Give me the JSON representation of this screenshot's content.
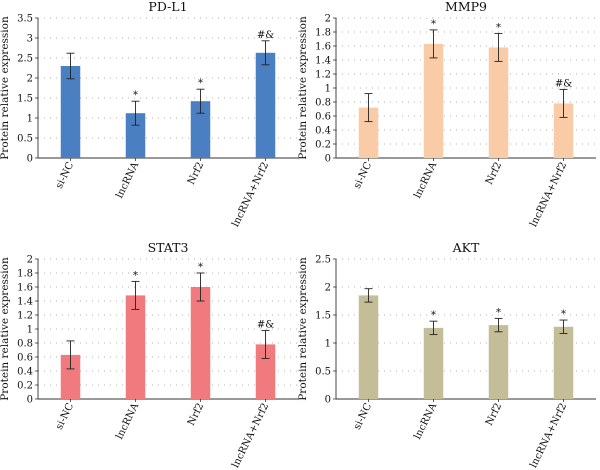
{
  "chart_data": [
    {
      "type": "bar",
      "title": "PD-L1",
      "ylabel": "Protein relative expression",
      "xlabel": "",
      "categories": [
        "si-NC",
        "lncRNA",
        "Nrf2",
        "lncRNA+Nrf2"
      ],
      "values": [
        2.3,
        1.12,
        1.42,
        2.63
      ],
      "errors": [
        0.32,
        0.3,
        0.3,
        0.3
      ],
      "annotations": [
        "",
        "*",
        "*",
        "#&"
      ],
      "ylim": [
        0,
        3.5
      ],
      "yticks": [
        "0",
        "0.5",
        "1",
        "1.5",
        "2",
        "2.5",
        "3",
        "3.5"
      ],
      "grid": true,
      "color": "#4a7fc1"
    },
    {
      "type": "bar",
      "title": "MMP9",
      "ylabel": "Protein relative expression",
      "xlabel": "",
      "categories": [
        "si-NC",
        "lncRNA",
        "Nrf2",
        "lncRNA+Nrf2"
      ],
      "values": [
        0.72,
        1.63,
        1.58,
        0.78
      ],
      "errors": [
        0.2,
        0.2,
        0.2,
        0.2
      ],
      "annotations": [
        "",
        "*",
        "*",
        "#&"
      ],
      "ylim": [
        0,
        2
      ],
      "yticks": [
        "0",
        "0.2",
        "0.4",
        "0.6",
        "0.8",
        "1",
        "1.2",
        "1.4",
        "1.6",
        "1.8",
        "2"
      ],
      "grid": true,
      "color": "#f9cba7"
    },
    {
      "type": "bar",
      "title": "STAT3",
      "ylabel": "Protein relative expression",
      "xlabel": "",
      "categories": [
        "si-NC",
        "lncRNA",
        "Nrf2",
        "lncRNA+Nrf2"
      ],
      "values": [
        0.63,
        1.48,
        1.6,
        0.78
      ],
      "errors": [
        0.2,
        0.2,
        0.2,
        0.2
      ],
      "annotations": [
        "",
        "*",
        "*",
        "#&"
      ],
      "ylim": [
        0,
        2
      ],
      "yticks": [
        "0",
        "0.2",
        "0.4",
        "0.6",
        "0.8",
        "1",
        "1.2",
        "1.4",
        "1.6",
        "1.8",
        "2"
      ],
      "grid": true,
      "color": "#f07a7e"
    },
    {
      "type": "bar",
      "title": "AKT",
      "ylabel": "Protein relative expression",
      "xlabel": "",
      "categories": [
        "si-NC",
        "lncRNA",
        "Nrf2",
        "lncRNA+Nrf2"
      ],
      "values": [
        1.85,
        1.27,
        1.32,
        1.29
      ],
      "errors": [
        0.12,
        0.12,
        0.12,
        0.12
      ],
      "annotations": [
        "",
        "*",
        "*",
        "*"
      ],
      "ylim": [
        0,
        2.5
      ],
      "yticks": [
        "0",
        "0.5",
        "1",
        "1.5",
        "2",
        "2.5"
      ],
      "grid": true,
      "color": "#c4be98"
    }
  ]
}
